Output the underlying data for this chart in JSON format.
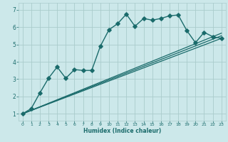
{
  "xlabel": "Humidex (Indice chaleur)",
  "background_color": "#cce8ea",
  "grid_color": "#aacccc",
  "line_color": "#1a6b6b",
  "tick_color": "#1a6b6b",
  "xlim": [
    -0.5,
    23.5
  ],
  "ylim": [
    0.6,
    7.4
  ],
  "x_ticks": [
    0,
    1,
    2,
    3,
    4,
    5,
    6,
    7,
    8,
    9,
    10,
    11,
    12,
    13,
    14,
    15,
    16,
    17,
    18,
    19,
    20,
    21,
    22,
    23
  ],
  "y_ticks": [
    1,
    2,
    3,
    4,
    5,
    6,
    7
  ],
  "series_main": {
    "x": [
      0,
      1,
      2,
      3,
      4,
      5,
      6,
      7,
      8,
      9,
      10,
      11,
      12,
      13,
      14,
      15,
      16,
      17,
      18,
      19,
      20,
      21,
      22,
      23
    ],
    "y": [
      1.0,
      1.3,
      2.2,
      3.05,
      3.7,
      3.05,
      3.55,
      3.5,
      3.5,
      4.9,
      5.85,
      6.2,
      6.75,
      6.05,
      6.5,
      6.4,
      6.5,
      6.65,
      6.7,
      5.8,
      5.1,
      5.7,
      5.45,
      5.35
    ],
    "marker": "D",
    "markersize": 2.8,
    "linewidth": 1.0
  },
  "series_lines": [
    {
      "x": [
        0,
        23
      ],
      "y": [
        1.0,
        5.35
      ]
    },
    {
      "x": [
        0,
        23
      ],
      "y": [
        1.0,
        5.5
      ]
    },
    {
      "x": [
        0,
        23
      ],
      "y": [
        1.0,
        5.65
      ]
    }
  ],
  "line_linewidth": 0.9
}
